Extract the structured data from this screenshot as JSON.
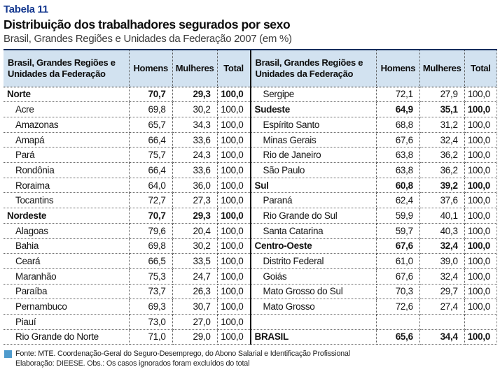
{
  "page": {
    "table_label": "Tabela 11",
    "title": "Distribuição dos trabalhadores segurados por sexo",
    "subtitle": "Brasil, Grandes Regiões e Unidades da Federação 2007 (em %)"
  },
  "columns": {
    "label": "Brasil, Grandes Regiões e Unidades da Federação",
    "homens": "Homens",
    "mulheres": "Mulheres",
    "total": "Total"
  },
  "left_rows": [
    {
      "label": "Norte",
      "homens": "70,7",
      "mulheres": "29,3",
      "total": "100,0",
      "style": "region"
    },
    {
      "label": "Acre",
      "homens": "69,8",
      "mulheres": "30,2",
      "total": "100,0",
      "style": "state"
    },
    {
      "label": "Amazonas",
      "homens": "65,7",
      "mulheres": "34,3",
      "total": "100,0",
      "style": "state"
    },
    {
      "label": "Amapá",
      "homens": "66,4",
      "mulheres": "33,6",
      "total": "100,0",
      "style": "state"
    },
    {
      "label": "Pará",
      "homens": "75,7",
      "mulheres": "24,3",
      "total": "100,0",
      "style": "state"
    },
    {
      "label": "Rondônia",
      "homens": "66,4",
      "mulheres": "33,6",
      "total": "100,0",
      "style": "state"
    },
    {
      "label": "Roraima",
      "homens": "64,0",
      "mulheres": "36,0",
      "total": "100,0",
      "style": "state"
    },
    {
      "label": "Tocantins",
      "homens": "72,7",
      "mulheres": "27,3",
      "total": "100,0",
      "style": "state"
    },
    {
      "label": "Nordeste",
      "homens": "70,7",
      "mulheres": "29,3",
      "total": "100,0",
      "style": "region"
    },
    {
      "label": "Alagoas",
      "homens": "79,6",
      "mulheres": "20,4",
      "total": "100,0",
      "style": "state"
    },
    {
      "label": "Bahia",
      "homens": "69,8",
      "mulheres": "30,2",
      "total": "100,0",
      "style": "state"
    },
    {
      "label": "Ceará",
      "homens": "66,5",
      "mulheres": "33,5",
      "total": "100,0",
      "style": "state"
    },
    {
      "label": "Maranhão",
      "homens": "75,3",
      "mulheres": "24,7",
      "total": "100,0",
      "style": "state"
    },
    {
      "label": "Paraíba",
      "homens": "73,7",
      "mulheres": "26,3",
      "total": "100,0",
      "style": "state"
    },
    {
      "label": "Pernambuco",
      "homens": "69,3",
      "mulheres": "30,7",
      "total": "100,0",
      "style": "state"
    },
    {
      "label": "Piauí",
      "homens": "73,0",
      "mulheres": "27,0",
      "total": "100,0",
      "style": "state"
    },
    {
      "label": "Rio Grande do Norte",
      "homens": "71,0",
      "mulheres": "29,0",
      "total": "100,0",
      "style": "state"
    }
  ],
  "right_rows": [
    {
      "label": "Sergipe",
      "homens": "72,1",
      "mulheres": "27,9",
      "total": "100,0",
      "style": "state"
    },
    {
      "label": "Sudeste",
      "homens": "64,9",
      "mulheres": "35,1",
      "total": "100,0",
      "style": "region"
    },
    {
      "label": "Espírito Santo",
      "homens": "68,8",
      "mulheres": "31,2",
      "total": "100,0",
      "style": "state"
    },
    {
      "label": "Minas Gerais",
      "homens": "67,6",
      "mulheres": "32,4",
      "total": "100,0",
      "style": "state"
    },
    {
      "label": "Rio de Janeiro",
      "homens": "63,8",
      "mulheres": "36,2",
      "total": "100,0",
      "style": "state"
    },
    {
      "label": "São Paulo",
      "homens": "63,8",
      "mulheres": "36,2",
      "total": "100,0",
      "style": "state"
    },
    {
      "label": "Sul",
      "homens": "60,8",
      "mulheres": "39,2",
      "total": "100,0",
      "style": "region"
    },
    {
      "label": "Paraná",
      "homens": "62,4",
      "mulheres": "37,6",
      "total": "100,0",
      "style": "state"
    },
    {
      "label": "Rio Grande do Sul",
      "homens": "59,9",
      "mulheres": "40,1",
      "total": "100,0",
      "style": "state"
    },
    {
      "label": "Santa Catarina",
      "homens": "59,7",
      "mulheres": "40,3",
      "total": "100,0",
      "style": "state"
    },
    {
      "label": "Centro-Oeste",
      "homens": "67,6",
      "mulheres": "32,4",
      "total": "100,0",
      "style": "region"
    },
    {
      "label": "Distrito Federal",
      "homens": "61,0",
      "mulheres": "39,0",
      "total": "100,0",
      "style": "state"
    },
    {
      "label": "Goiás",
      "homens": "67,6",
      "mulheres": "32,4",
      "total": "100,0",
      "style": "state"
    },
    {
      "label": "Mato Grosso do Sul",
      "homens": "70,3",
      "mulheres": "29,7",
      "total": "100,0",
      "style": "state"
    },
    {
      "label": "Mato Grosso",
      "homens": "72,6",
      "mulheres": "27,4",
      "total": "100,0",
      "style": "state"
    },
    {
      "label": "",
      "homens": "",
      "mulheres": "",
      "total": "",
      "style": "empty"
    },
    {
      "label": "BRASIL",
      "homens": "65,6",
      "mulheres": "34,4",
      "total": "100,0",
      "style": "brasil"
    }
  ],
  "footer": {
    "line1": "Fonte: MTE. Coordenação-Geral do Seguro-Desemprego, do Abono Salarial e Identificação Profissional",
    "line2": "Elaboração: DIEESE. Obs.: Os casos ignorados foram excluídos do total"
  },
  "colors": {
    "title_blue": "#14388f",
    "header_bg": "#d2e2f0",
    "table_top_border": "#0e2d5e",
    "legend_square_blue": "#4f9bcd"
  }
}
